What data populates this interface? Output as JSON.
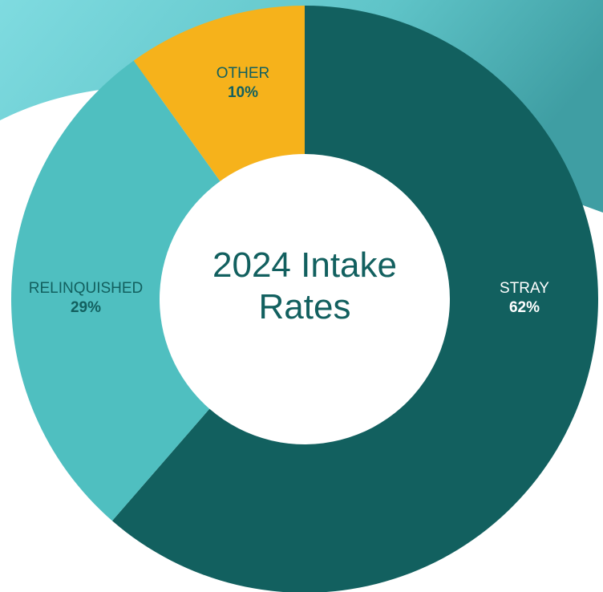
{
  "chart_data": {
    "type": "donut",
    "title": "2024 Intake Rates",
    "categories": [
      "STRAY",
      "RELINQUISHED",
      "OTHER"
    ],
    "values": [
      62,
      29,
      10
    ],
    "value_labels": [
      "62%",
      "29%",
      "10%"
    ],
    "colors": [
      "#12605f",
      "#4fbfc0",
      "#f6b21b"
    ]
  }
}
